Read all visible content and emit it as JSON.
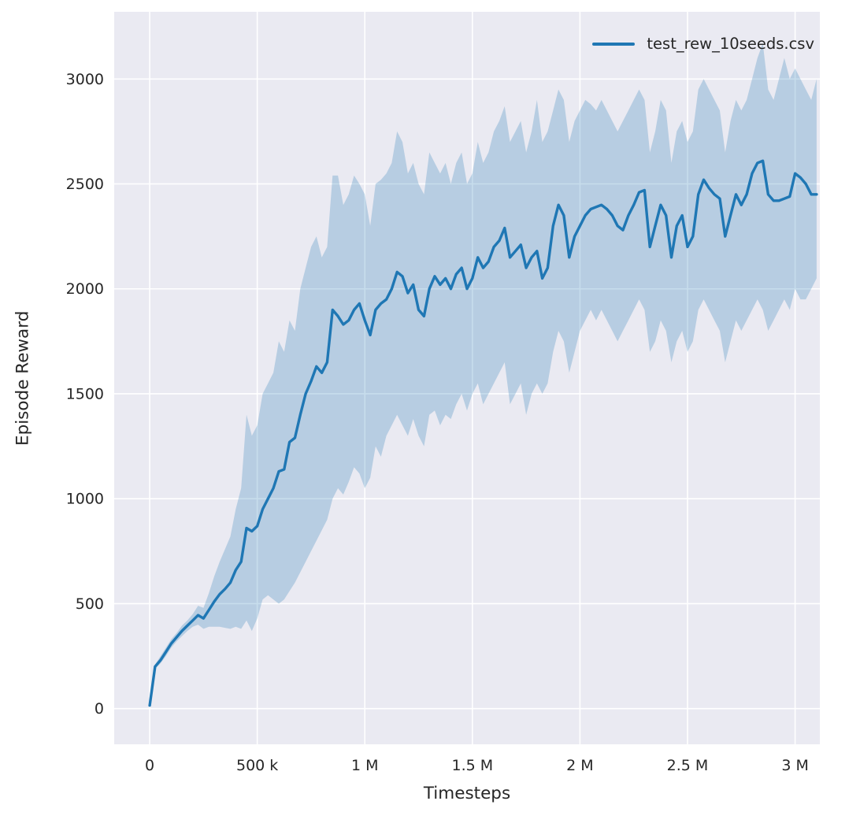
{
  "figure": {
    "background": "#ffffff"
  },
  "chart_data": {
    "type": "line",
    "title": "",
    "xlabel": "Timesteps",
    "ylabel": "Episode Reward",
    "xlim": [
      -165000,
      3115000
    ],
    "ylim": [
      -170,
      3320
    ],
    "grid": true,
    "legend": {
      "label": "test_rew_10seeds.csv",
      "position": "upper right"
    },
    "colors": {
      "plot_bg": "#eaeaf2",
      "grid": "#ffffff",
      "text": "#262626",
      "accent": "#1f77b4"
    },
    "xticks": {
      "values": [
        0,
        500000,
        1000000,
        1500000,
        2000000,
        2500000,
        3000000
      ],
      "labels": [
        "0",
        "500 k",
        "1 M",
        "1.5 M",
        "2 M",
        "2.5 M",
        "3 M"
      ]
    },
    "yticks": {
      "values": [
        0,
        500,
        1000,
        1500,
        2000,
        2500,
        3000
      ],
      "labels": [
        "0",
        "500",
        "1000",
        "1500",
        "2000",
        "2500",
        "3000"
      ]
    },
    "series": [
      {
        "name": "test_rew_10seeds.csv",
        "color": "#1f77b4",
        "band_opacity": 0.25,
        "x": [
          0,
          25000,
          50000,
          75000,
          100000,
          125000,
          150000,
          175000,
          200000,
          225000,
          250000,
          275000,
          300000,
          325000,
          350000,
          375000,
          400000,
          425000,
          450000,
          475000,
          500000,
          525000,
          550000,
          575000,
          600000,
          625000,
          650000,
          675000,
          700000,
          725000,
          750000,
          775000,
          800000,
          825000,
          850000,
          875000,
          900000,
          925000,
          950000,
          975000,
          1000000,
          1025000,
          1050000,
          1075000,
          1100000,
          1125000,
          1150000,
          1175000,
          1200000,
          1225000,
          1250000,
          1275000,
          1300000,
          1325000,
          1350000,
          1375000,
          1400000,
          1425000,
          1450000,
          1475000,
          1500000,
          1525000,
          1550000,
          1575000,
          1600000,
          1625000,
          1650000,
          1675000,
          1700000,
          1725000,
          1750000,
          1775000,
          1800000,
          1825000,
          1850000,
          1875000,
          1900000,
          1925000,
          1950000,
          1975000,
          2000000,
          2025000,
          2050000,
          2075000,
          2100000,
          2125000,
          2150000,
          2175000,
          2200000,
          2225000,
          2250000,
          2275000,
          2300000,
          2325000,
          2350000,
          2375000,
          2400000,
          2425000,
          2450000,
          2475000,
          2500000,
          2525000,
          2550000,
          2575000,
          2600000,
          2625000,
          2650000,
          2675000,
          2700000,
          2725000,
          2750000,
          2775000,
          2800000,
          2825000,
          2850000,
          2875000,
          2900000,
          2925000,
          2950000,
          2975000,
          3000000,
          3025000,
          3050000,
          3075000,
          3100000
        ],
        "mean": [
          15,
          200,
          230,
          270,
          310,
          340,
          370,
          395,
          420,
          445,
          430,
          470,
          510,
          545,
          570,
          600,
          660,
          700,
          860,
          845,
          870,
          950,
          1000,
          1050,
          1130,
          1140,
          1270,
          1290,
          1400,
          1500,
          1560,
          1630,
          1600,
          1650,
          1900,
          1870,
          1830,
          1850,
          1900,
          1930,
          1850,
          1780,
          1900,
          1930,
          1950,
          2000,
          2080,
          2060,
          1980,
          2020,
          1900,
          1870,
          2000,
          2060,
          2020,
          2050,
          2000,
          2070,
          2100,
          2000,
          2050,
          2150,
          2100,
          2130,
          2200,
          2230,
          2290,
          2150,
          2180,
          2210,
          2100,
          2150,
          2180,
          2050,
          2100,
          2300,
          2400,
          2350,
          2150,
          2250,
          2300,
          2350,
          2380,
          2390,
          2400,
          2380,
          2350,
          2300,
          2280,
          2350,
          2400,
          2460,
          2470,
          2200,
          2300,
          2400,
          2350,
          2150,
          2300,
          2350,
          2200,
          2250,
          2450,
          2520,
          2480,
          2450,
          2430,
          2250,
          2350,
          2450,
          2400,
          2450,
          2550,
          2600,
          2610,
          2450,
          2420,
          2420,
          2430,
          2440,
          2550,
          2530,
          2500,
          2450,
          2450
        ],
        "band_lower": [
          10,
          190,
          215,
          250,
          290,
          320,
          345,
          370,
          390,
          400,
          380,
          390,
          390,
          390,
          385,
          380,
          390,
          380,
          420,
          370,
          430,
          520,
          540,
          520,
          500,
          520,
          560,
          600,
          650,
          700,
          750,
          800,
          850,
          900,
          1000,
          1050,
          1020,
          1080,
          1150,
          1120,
          1050,
          1100,
          1250,
          1200,
          1300,
          1350,
          1400,
          1350,
          1300,
          1380,
          1300,
          1250,
          1400,
          1420,
          1350,
          1400,
          1380,
          1450,
          1500,
          1420,
          1500,
          1550,
          1450,
          1500,
          1550,
          1600,
          1650,
          1450,
          1500,
          1550,
          1400,
          1500,
          1550,
          1500,
          1550,
          1700,
          1800,
          1750,
          1600,
          1700,
          1800,
          1850,
          1900,
          1850,
          1900,
          1850,
          1800,
          1750,
          1800,
          1850,
          1900,
          1950,
          1900,
          1700,
          1750,
          1850,
          1800,
          1650,
          1750,
          1800,
          1700,
          1750,
          1900,
          1950,
          1900,
          1850,
          1800,
          1650,
          1750,
          1850,
          1800,
          1850,
          1900,
          1950,
          1900,
          1800,
          1850,
          1900,
          1950,
          1900,
          2000,
          1950,
          1950,
          2000,
          2050
        ],
        "band_upper": [
          20,
          210,
          250,
          290,
          330,
          360,
          395,
          420,
          450,
          490,
          480,
          550,
          630,
          700,
          760,
          820,
          950,
          1050,
          1400,
          1300,
          1350,
          1500,
          1550,
          1600,
          1750,
          1700,
          1850,
          1800,
          2000,
          2100,
          2200,
          2250,
          2150,
          2200,
          2540,
          2540,
          2400,
          2450,
          2540,
          2500,
          2450,
          2300,
          2500,
          2520,
          2550,
          2600,
          2750,
          2700,
          2550,
          2600,
          2500,
          2450,
          2650,
          2600,
          2550,
          2600,
          2500,
          2600,
          2650,
          2500,
          2550,
          2700,
          2600,
          2650,
          2750,
          2800,
          2870,
          2700,
          2750,
          2800,
          2650,
          2750,
          2900,
          2700,
          2750,
          2850,
          2950,
          2900,
          2700,
          2800,
          2850,
          2900,
          2880,
          2850,
          2900,
          2850,
          2800,
          2750,
          2800,
          2850,
          2900,
          2950,
          2900,
          2650,
          2750,
          2900,
          2850,
          2600,
          2750,
          2800,
          2700,
          2750,
          2950,
          3000,
          2950,
          2900,
          2850,
          2650,
          2800,
          2900,
          2850,
          2900,
          3000,
          3100,
          3170,
          2950,
          2900,
          3000,
          3100,
          3000,
          3050,
          3000,
          2950,
          2900,
          3000
        ]
      }
    ]
  }
}
